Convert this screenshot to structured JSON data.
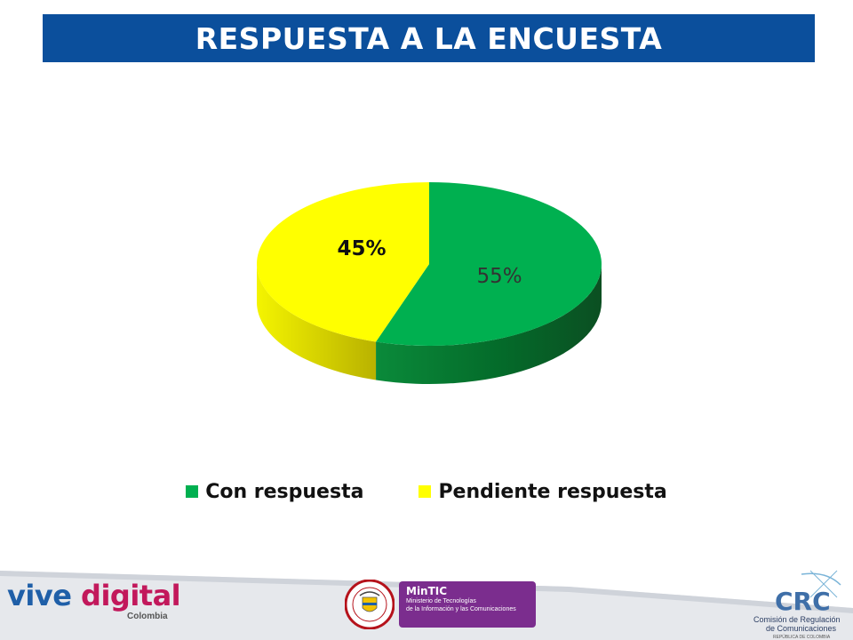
{
  "header": {
    "title": "RESPUESTA A LA ENCUESTA"
  },
  "chart_data": {
    "type": "pie",
    "style": "3d",
    "categories": [
      "Con respuesta",
      "Pendiente respuesta"
    ],
    "values": [
      55,
      45
    ],
    "labels": [
      "55%",
      "45%"
    ],
    "colors": [
      "#00b050",
      "#ffff00"
    ],
    "legend": "bottom"
  },
  "footer": {
    "vive_a": "vive",
    "vive_b": "digital",
    "vive_country": "Colombia",
    "mintic": {
      "name": "MinTIC",
      "line1": "Ministerio de Tecnologías",
      "line2": "de la Información y las Comunicaciones"
    },
    "crc": {
      "acronym": "CRC",
      "line1": "Comisión de Regulación",
      "line2": "de Comunicaciones",
      "line3": "REPÚBLICA DE COLOMBIA"
    }
  }
}
